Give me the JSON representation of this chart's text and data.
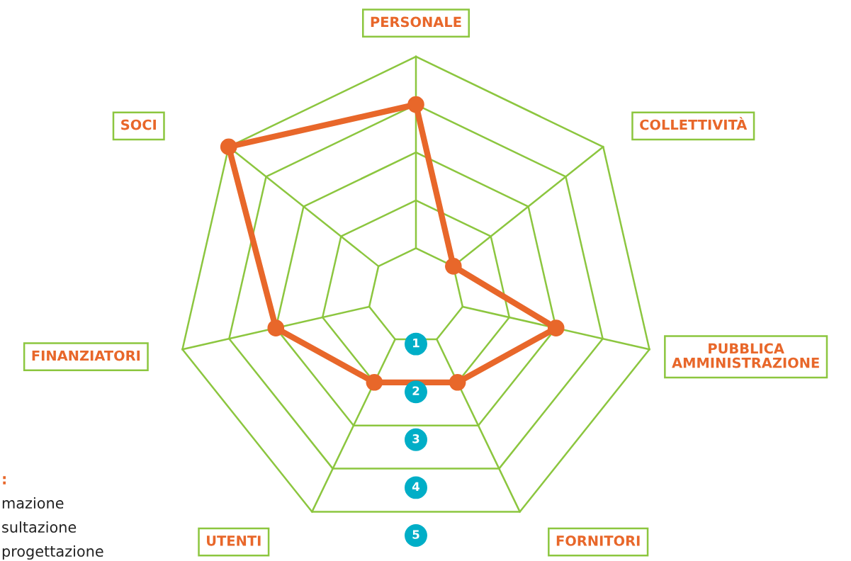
{
  "chart_data": {
    "type": "radar",
    "categories": [
      "PERSONALE",
      "COLLETTIVITÀ",
      "PUBBLICA\nAMMINISTRAZIONE",
      "FORNITORI",
      "UTENTI",
      "FINANZIATORI",
      "SOCI"
    ],
    "series": [
      {
        "color": "#e8672a",
        "values": [
          4,
          1,
          3,
          2,
          2,
          3,
          5
        ]
      }
    ],
    "ylim": [
      0,
      5
    ],
    "yticks": [
      1,
      2,
      3,
      4,
      5
    ],
    "grid": true,
    "marker": "circle",
    "line_style": "solid",
    "annotations": [
      ":",
      "mazione",
      "sultazione",
      "progettazione"
    ]
  }
}
